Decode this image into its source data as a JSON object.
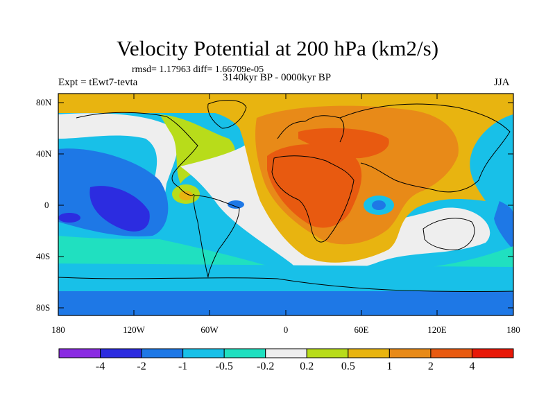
{
  "header": {
    "title": "Velocity Potential at 200 hPa (km2/s)",
    "stats": "rmsd= 1.17963  diff= 1.66709e-05",
    "experiment": "Expt = tEwt7-tevta",
    "period": "3140kyr BP - 0000kyr BP",
    "season": "JJA"
  },
  "axes": {
    "y_labels": [
      "80N",
      "40N",
      "0",
      "40S",
      "80S"
    ],
    "x_labels": [
      "180",
      "120W",
      "60W",
      "0",
      "60E",
      "120E",
      "180"
    ]
  },
  "colorbar": {
    "labels": [
      "-4",
      "-2",
      "-1",
      "-0.5",
      "-0.2",
      "0.2",
      "0.5",
      "1",
      "2",
      "4"
    ],
    "colors": [
      "#8a2be2",
      "#2c2ce0",
      "#1e78e6",
      "#18c0e8",
      "#20e0c0",
      "#eeeeee",
      "#b8dc1a",
      "#e8b410",
      "#e88a18",
      "#e85a10",
      "#e81808"
    ]
  }
}
